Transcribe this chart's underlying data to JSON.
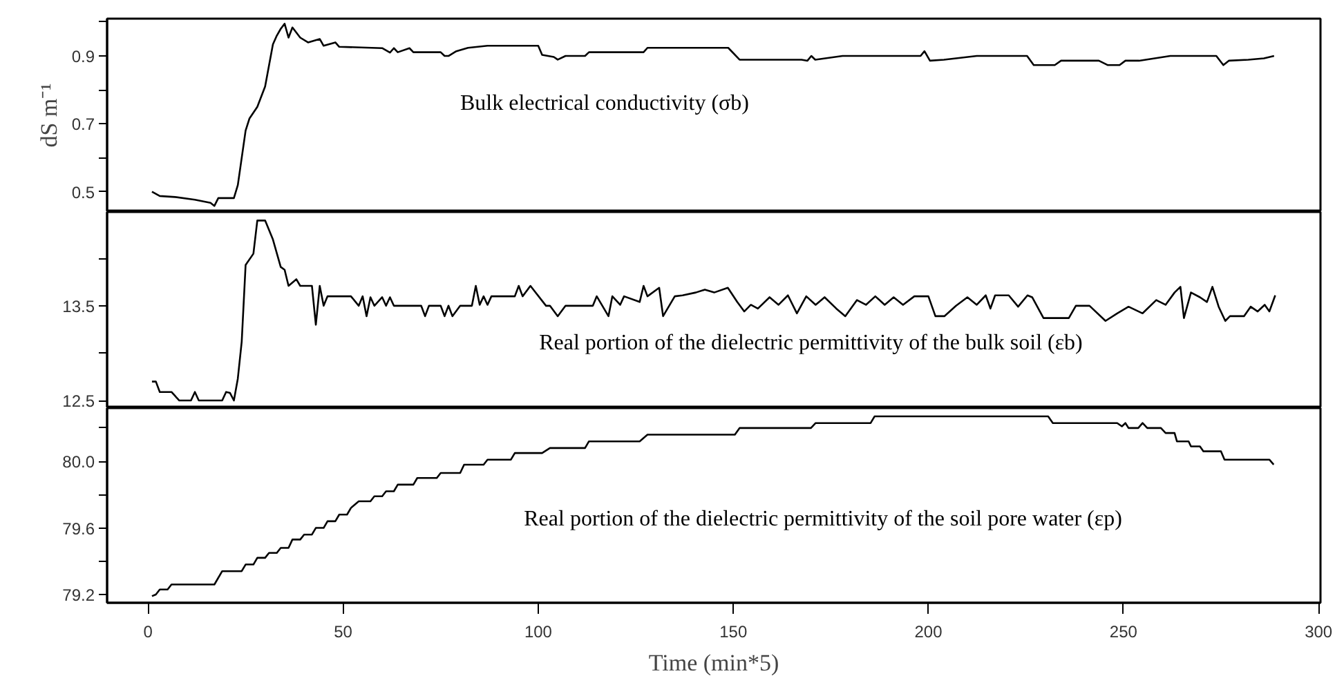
{
  "chart_data": [
    {
      "type": "line",
      "ylabel": "dS m⁻¹",
      "annotations": [
        "Bulk electrical conductivity (σb)"
      ],
      "tick_labels": "y",
      "xlim": [
        -10.5,
        300.5
      ],
      "ylim": [
        0.44,
        1.01
      ],
      "yticks": [
        0.5,
        {
          "value": 0.6,
          "label": null
        },
        0.7,
        {
          "value": 0.8,
          "label": null
        },
        0.9,
        {
          "value": 1.0,
          "label": null
        }
      ],
      "x": [
        1,
        3,
        7,
        12,
        16,
        17,
        18,
        22,
        23,
        25,
        26,
        28,
        30,
        32,
        33,
        34,
        35,
        36,
        37,
        39,
        41,
        44,
        45,
        48,
        49,
        60,
        62,
        63,
        64,
        67,
        68,
        75,
        76,
        77,
        79,
        82,
        87,
        100,
        101,
        104,
        105,
        107,
        112,
        113,
        127,
        128,
        148.7,
        151.6,
        167.5,
        169,
        170,
        171,
        178,
        198,
        199,
        200.4,
        204,
        212.4,
        225.3,
        227,
        232.4,
        234,
        243.7,
        246,
        249,
        250.5,
        254,
        262,
        273.8,
        275.6,
        277,
        282,
        286,
        288.6
      ],
      "series": [
        {
          "color": "#000000",
          "values": [
            0.5,
            0.487,
            0.484,
            0.476,
            0.467,
            0.458,
            0.481,
            0.481,
            0.519,
            0.68,
            0.716,
            0.75,
            0.81,
            0.934,
            0.96,
            0.98,
            0.995,
            0.954,
            0.984,
            0.954,
            0.94,
            0.95,
            0.93,
            0.94,
            0.927,
            0.923,
            0.91,
            0.923,
            0.911,
            0.923,
            0.911,
            0.911,
            0.9,
            0.9,
            0.914,
            0.924,
            0.93,
            0.93,
            0.903,
            0.897,
            0.889,
            0.9,
            0.9,
            0.911,
            0.911,
            0.924,
            0.924,
            0.889,
            0.889,
            0.886,
            0.9,
            0.889,
            0.9,
            0.9,
            0.914,
            0.886,
            0.889,
            0.9,
            0.9,
            0.873,
            0.873,
            0.886,
            0.886,
            0.873,
            0.873,
            0.886,
            0.886,
            0.9,
            0.9,
            0.873,
            0.886,
            0.889,
            0.893,
            0.9
          ]
        }
      ]
    },
    {
      "type": "line",
      "annotations": [
        "Real portion of the dielectric permittivity of the bulk soil (εb)"
      ],
      "tick_labels": "y",
      "xlim": [
        -10.5,
        300.5
      ],
      "ylim": [
        12.42,
        14.49
      ],
      "yticks": [
        {
          "value": 12.5,
          "label": "12.5"
        },
        {
          "value": 13.0,
          "label": null
        },
        13.5,
        {
          "value": 14.0,
          "label": null
        }
      ],
      "x": [
        1,
        2,
        3,
        6,
        8,
        11,
        12,
        13,
        19,
        20,
        21,
        22,
        23,
        24,
        25,
        27,
        28,
        30,
        32,
        34,
        35,
        36,
        38,
        39,
        42,
        43,
        44,
        45,
        46,
        48,
        52,
        54,
        55,
        56,
        57,
        58,
        60,
        61,
        62,
        63,
        70,
        71,
        72,
        75,
        76,
        77,
        78,
        80,
        83,
        84,
        85,
        86,
        87,
        88,
        94,
        95,
        96,
        98,
        102,
        103,
        105,
        107,
        114,
        115,
        118,
        119,
        121,
        122,
        126,
        127,
        128,
        131,
        132,
        135,
        137,
        140.4,
        142.7,
        145.1,
        148.6,
        151,
        152.8,
        154.5,
        156.3,
        159.3,
        161.6,
        164,
        166.3,
        168.7,
        171.1,
        173.4,
        176.4,
        178.7,
        181.7,
        184,
        186.4,
        188.8,
        191.1,
        193.5,
        196.4,
        200,
        201.8,
        204.1,
        207.1,
        210,
        212.4,
        214.7,
        215.9,
        217.1,
        220.6,
        223,
        225.4,
        226.6,
        229.5,
        236,
        237.8,
        241.3,
        245.4,
        248.4,
        251.3,
        254.9,
        258.4,
        260.8,
        263.1,
        264.6,
        265.5,
        267.3,
        269.6,
        271.4,
        272.8,
        274.4,
        276.1,
        277.3,
        280.9,
        282.6,
        284.4,
        286.2,
        287.4,
        288.9
      ],
      "series": [
        {
          "color": "#000000",
          "values": [
            12.7,
            12.7,
            12.59,
            12.59,
            12.5,
            12.5,
            12.59,
            12.5,
            12.5,
            12.59,
            12.58,
            12.5,
            12.73,
            13.12,
            13.93,
            14.05,
            14.4,
            14.4,
            14.2,
            13.91,
            13.88,
            13.71,
            13.78,
            13.71,
            13.71,
            13.3,
            13.71,
            13.5,
            13.6,
            13.6,
            13.6,
            13.5,
            13.6,
            13.39,
            13.59,
            13.5,
            13.59,
            13.5,
            13.59,
            13.5,
            13.5,
            13.39,
            13.5,
            13.5,
            13.39,
            13.5,
            13.39,
            13.5,
            13.5,
            13.71,
            13.51,
            13.6,
            13.51,
            13.6,
            13.6,
            13.71,
            13.6,
            13.71,
            13.5,
            13.5,
            13.39,
            13.5,
            13.5,
            13.6,
            13.39,
            13.6,
            13.51,
            13.6,
            13.54,
            13.71,
            13.6,
            13.69,
            13.39,
            13.6,
            13.61,
            13.64,
            13.67,
            13.64,
            13.69,
            13.54,
            13.44,
            13.51,
            13.47,
            13.59,
            13.51,
            13.61,
            13.42,
            13.6,
            13.51,
            13.59,
            13.47,
            13.39,
            13.56,
            13.51,
            13.6,
            13.51,
            13.59,
            13.51,
            13.6,
            13.6,
            13.39,
            13.39,
            13.5,
            13.59,
            13.51,
            13.61,
            13.47,
            13.61,
            13.61,
            13.49,
            13.61,
            13.59,
            13.37,
            13.37,
            13.5,
            13.5,
            13.34,
            13.42,
            13.49,
            13.42,
            13.56,
            13.51,
            13.64,
            13.7,
            13.37,
            13.64,
            13.59,
            13.54,
            13.7,
            13.49,
            13.34,
            13.39,
            13.39,
            13.49,
            13.44,
            13.51,
            13.44,
            13.61
          ]
        }
      ]
    },
    {
      "type": "line",
      "xlabel": "Time (min*5)",
      "annotations": [
        "Real portion of the dielectric permittivity of the soil pore water (εp)"
      ],
      "xlim": [
        -10.5,
        300.5
      ],
      "xticks": [
        0,
        50,
        100,
        150,
        200,
        250,
        300
      ],
      "ylim": [
        79.15,
        80.32
      ],
      "yticks": [
        {
          "value": 79.2,
          "label": "79.2"
        },
        {
          "value": 79.4,
          "label": null
        },
        79.6,
        {
          "value": 79.8,
          "label": null
        },
        {
          "value": 80.0,
          "label": "80.0"
        },
        {
          "value": 80.2,
          "label": null
        }
      ],
      "x": [
        1,
        2,
        3,
        5,
        6,
        17,
        19,
        24,
        25,
        27,
        28,
        30,
        31,
        33,
        34,
        36,
        37,
        39,
        40,
        42,
        43,
        45,
        46,
        48,
        49,
        51,
        52,
        54,
        57,
        58,
        60,
        61,
        63,
        64,
        68,
        69,
        74,
        75,
        80,
        81,
        86,
        87,
        93,
        94,
        101,
        103,
        112,
        113,
        126,
        128,
        150.4,
        151.6,
        169.9,
        171.1,
        185.2,
        186.2,
        230.7,
        231.9,
        248.4,
        249.6,
        250.5,
        251.3,
        253.8,
        254.9,
        256.1,
        259.6,
        260.8,
        263.1,
        263.7,
        266.7,
        267.3,
        269.6,
        270.5,
        275,
        275.9,
        287.4,
        288.5
      ],
      "series": [
        {
          "color": "#000000",
          "values": [
            79.19,
            79.2,
            79.23,
            79.23,
            79.26,
            79.26,
            79.34,
            79.34,
            79.38,
            79.38,
            79.42,
            79.42,
            79.45,
            79.45,
            79.48,
            79.48,
            79.53,
            79.53,
            79.56,
            79.56,
            79.6,
            79.6,
            79.64,
            79.64,
            79.68,
            79.68,
            79.72,
            79.76,
            79.76,
            79.79,
            79.79,
            79.82,
            79.82,
            79.86,
            79.86,
            79.9,
            79.9,
            79.93,
            79.93,
            79.98,
            79.98,
            80.01,
            80.01,
            80.05,
            80.05,
            80.08,
            80.08,
            80.12,
            80.12,
            80.16,
            80.16,
            80.2,
            80.2,
            80.23,
            80.23,
            80.27,
            80.27,
            80.23,
            80.23,
            80.21,
            80.23,
            80.2,
            80.2,
            80.23,
            80.2,
            80.2,
            80.17,
            80.17,
            80.12,
            80.12,
            80.09,
            80.09,
            80.06,
            80.06,
            80.01,
            80.01,
            79.98
          ]
        }
      ]
    }
  ]
}
